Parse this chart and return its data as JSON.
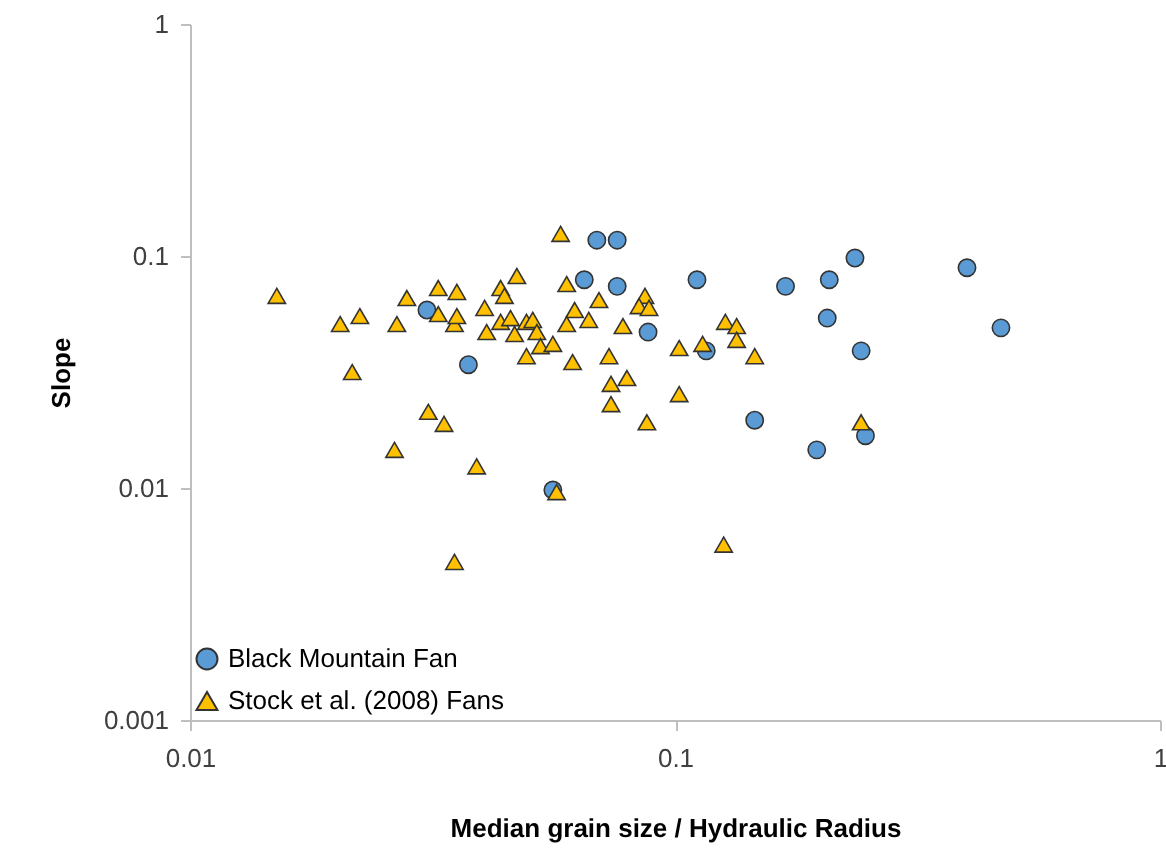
{
  "chart_data": {
    "type": "scatter",
    "xlabel": "Median grain size / Hydraulic Radius",
    "ylabel": "Slope",
    "log": "xy",
    "xlim": [
      0.01,
      1
    ],
    "ylim": [
      0.001,
      1
    ],
    "xticks": [
      0.01,
      0.1,
      1
    ],
    "yticks": [
      0.001,
      0.01,
      0.1,
      1
    ],
    "grid": false,
    "legend": "bottom left",
    "series": [
      {
        "name": "Black Mountain Fan",
        "color": "#5b9bd5",
        "marker": "circle",
        "x": [
          0.0308,
          0.0375,
          0.056,
          0.065,
          0.069,
          0.076,
          0.076,
          0.088,
          0.111,
          0.116,
          0.169,
          0.208,
          0.235,
          0.206,
          0.242,
          0.146,
          0.196,
          0.247,
          0.4,
          0.47
        ],
        "values": [
          0.0585,
          0.034,
          0.0098,
          0.079,
          0.117,
          0.117,
          0.074,
          0.047,
          0.079,
          0.039,
          0.074,
          0.079,
          0.098,
          0.054,
          0.039,
          0.0196,
          0.0146,
          0.0168,
          0.089,
          0.049
        ]
      },
      {
        "name": "Stock et al. (2008) Fans",
        "color": "#ffc000",
        "marker": "triangle",
        "x": [
          0.0151,
          0.0204,
          0.0224,
          0.0267,
          0.028,
          0.0216,
          0.0325,
          0.0355,
          0.0325,
          0.0351,
          0.0355,
          0.031,
          0.0334,
          0.0264,
          0.039,
          0.0351,
          0.0472,
          0.0437,
          0.0445,
          0.0405,
          0.0409,
          0.0437,
          0.0458,
          0.0467,
          0.0494,
          0.0509,
          0.0519,
          0.0528,
          0.056,
          0.0494,
          0.057,
          0.0581,
          0.0598,
          0.0621,
          0.0598,
          0.0664,
          0.0697,
          0.0781,
          0.0615,
          0.0731,
          0.0738,
          0.0796,
          0.0738,
          0.0875,
          0.0867,
          0.0843,
          0.0884,
          0.102,
          0.102,
          0.114,
          0.127,
          0.134,
          0.134,
          0.146,
          0.242,
          0.126
        ],
        "values": [
          0.0673,
          0.0509,
          0.0551,
          0.0509,
          0.0659,
          0.0316,
          0.0728,
          0.07,
          0.0562,
          0.0509,
          0.0551,
          0.0213,
          0.0189,
          0.0146,
          0.0124,
          0.0048,
          0.082,
          0.0728,
          0.0673,
          0.0597,
          0.047,
          0.052,
          0.054,
          0.0461,
          0.052,
          0.053,
          0.047,
          0.0409,
          0.0418,
          0.037,
          0.0096,
          0.1245,
          0.0757,
          0.0585,
          0.0509,
          0.053,
          0.0646,
          0.0499,
          0.0349,
          0.037,
          0.0281,
          0.0298,
          0.023,
          0.0192,
          0.0673,
          0.0608,
          0.0597,
          0.0401,
          0.0254,
          0.0418,
          0.052,
          0.0499,
          0.0435,
          0.037,
          0.0192,
          0.0057
        ]
      }
    ]
  }
}
